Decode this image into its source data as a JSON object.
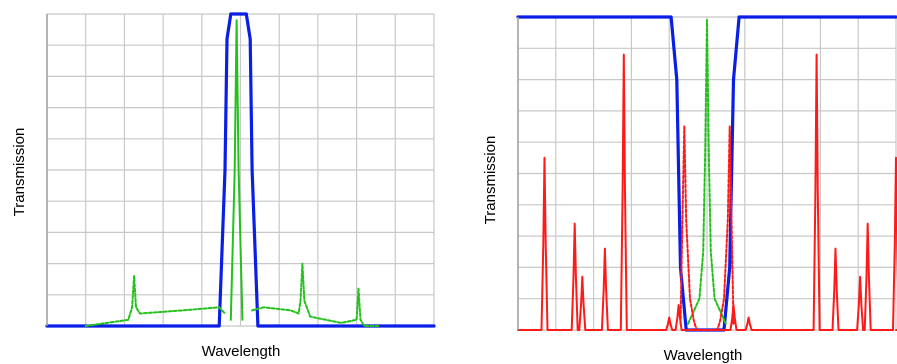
{
  "colors": {
    "grid": "#c8c8c8",
    "axis": "#a0a0a0",
    "blue": "#0a1fe6",
    "green": "#22c21a",
    "red": "#ff1a1a"
  },
  "chart_data": [
    {
      "type": "line",
      "title": "",
      "xlabel": "Wavelength",
      "ylabel": "Transmission",
      "xlim": [
        0,
        10
      ],
      "ylim": [
        0,
        1
      ],
      "grid": true,
      "series": [
        {
          "style": "solid",
          "color": "blue",
          "x": [
            0,
            4.45,
            4.6,
            4.65,
            4.75,
            5.15,
            5.25,
            5.3,
            5.45,
            10
          ],
          "y": [
            0,
            0.0,
            0.5,
            0.92,
            1.0,
            1.0,
            0.92,
            0.5,
            0.0,
            0
          ]
        },
        {
          "style": "solid",
          "color": "green",
          "x": [
            4.75,
            4.85,
            4.9,
            4.95,
            5.05
          ],
          "y": [
            0.02,
            0.5,
            0.98,
            0.5,
            0.02
          ]
        },
        {
          "style": "dotted",
          "color": "green",
          "x": [
            1,
            2.1,
            2.2,
            2.25,
            2.3,
            2.4,
            3.5,
            4.45,
            4.6
          ],
          "y": [
            0,
            0.02,
            0.06,
            0.16,
            0.06,
            0.04,
            0.05,
            0.06,
            0.04
          ]
        },
        {
          "style": "dotted",
          "color": "green",
          "x": [
            5.3,
            5.6,
            6.3,
            6.5,
            6.55,
            6.6,
            6.65,
            6.8,
            7.6,
            8.0,
            8.05,
            8.1,
            8.2,
            8.6
          ],
          "y": [
            0.05,
            0.06,
            0.05,
            0.04,
            0.08,
            0.2,
            0.08,
            0.03,
            0.01,
            0.02,
            0.12,
            0.02,
            0.0,
            0
          ]
        }
      ]
    },
    {
      "type": "line",
      "title": "",
      "xlabel": "Wavelength",
      "ylabel": "Transmission",
      "xlim": [
        0,
        10
      ],
      "ylim": [
        0,
        1
      ],
      "grid": true,
      "series": [
        {
          "style": "solid",
          "color": "blue",
          "x": [
            0,
            4.05,
            4.2,
            4.3,
            4.45,
            5.45,
            5.6,
            5.7,
            5.85,
            10
          ],
          "y": [
            1,
            1.0,
            0.8,
            0.2,
            0.0,
            0.0,
            0.2,
            0.8,
            1.0,
            1
          ]
        },
        {
          "style": "dotted",
          "color": "green",
          "x": [
            4.5,
            4.8,
            4.9,
            4.95,
            5.0,
            5.05,
            5.1,
            5.2,
            5.5
          ],
          "y": [
            0.02,
            0.1,
            0.25,
            0.55,
            0.99,
            0.55,
            0.25,
            0.1,
            0.02
          ]
        },
        {
          "style": "dotted",
          "color": "red",
          "x": [
            4.3,
            4.35,
            4.4,
            4.45,
            4.55,
            4.65,
            4.7,
            4.75,
            5.25,
            5.3,
            5.35,
            5.45,
            5.55,
            5.6,
            5.7
          ],
          "y": [
            0.02,
            0.35,
            0.65,
            0.35,
            0.1,
            0.03,
            0.01,
            0.0,
            0.0,
            0.01,
            0.03,
            0.1,
            0.35,
            0.65,
            0.02
          ]
        },
        {
          "style": "solid",
          "color": "red",
          "peaks": [
            {
              "x": 0.7,
              "h": 0.55
            },
            {
              "x": 1.5,
              "h": 0.34
            },
            {
              "x": 1.7,
              "h": 0.17
            },
            {
              "x": 2.3,
              "h": 0.26
            },
            {
              "x": 2.8,
              "h": 0.88
            },
            {
              "x": 4.0,
              "h": 0.04
            },
            {
              "x": 4.25,
              "h": 0.08
            },
            {
              "x": 5.7,
              "h": 0.08
            },
            {
              "x": 6.1,
              "h": 0.04
            },
            {
              "x": 7.9,
              "h": 0.88
            },
            {
              "x": 8.4,
              "h": 0.26
            },
            {
              "x": 9.05,
              "h": 0.17
            },
            {
              "x": 9.25,
              "h": 0.34
            },
            {
              "x": 10.0,
              "h": 0.55
            }
          ]
        }
      ]
    }
  ]
}
